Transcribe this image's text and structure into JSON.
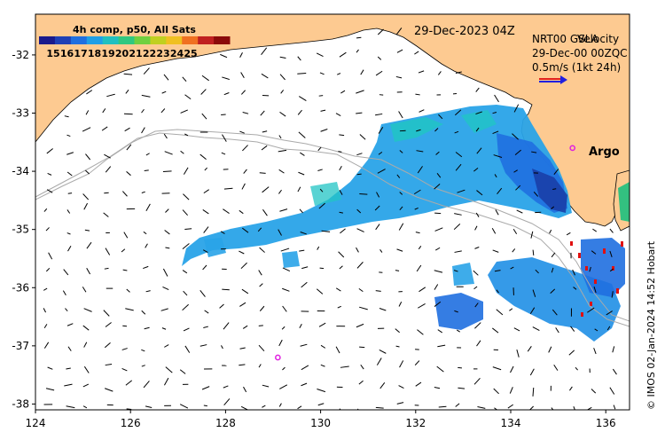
{
  "map": {
    "date_label": "29-Dec-2023 04Z",
    "legend_title": "NRT00 GSLA",
    "velocity_label": "Velocity",
    "qc_label": "29-Dec-00 00ZQC",
    "scale_label": "0.5m/s (1kt 24h)",
    "colorbar_title": "4h comp, p50, All Sats",
    "colorbar_ticks": [
      "15",
      "16",
      "17",
      "18",
      "19",
      "20",
      "21",
      "22",
      "23",
      "24",
      "25"
    ],
    "colorbar_colors": [
      "#1a1a8c",
      "#1f3fb5",
      "#1f6fe0",
      "#1f9fe6",
      "#20c0c0",
      "#30c880",
      "#70d040",
      "#c0d020",
      "#f0c020",
      "#f07020",
      "#c02020",
      "#8b0a0a"
    ],
    "argo_label": "Argo",
    "credit": "© IMOS 02-Jan-2024 14:52 Hobart",
    "x_ticks": [
      "124",
      "126",
      "128",
      "130",
      "132",
      "134",
      "136"
    ],
    "y_ticks": [
      "-32",
      "-33",
      "-34",
      "-35",
      "-36",
      "-37",
      "-38"
    ],
    "lon_range": [
      124,
      136.5
    ],
    "lat_range": [
      -38.1,
      -31.3
    ],
    "land_color": "#fdca91",
    "argo_color": "#e020e0",
    "argo_points": [
      {
        "lon": 135.3,
        "lat": -33.6
      },
      {
        "lon": 129.1,
        "lat": -37.2
      }
    ]
  }
}
